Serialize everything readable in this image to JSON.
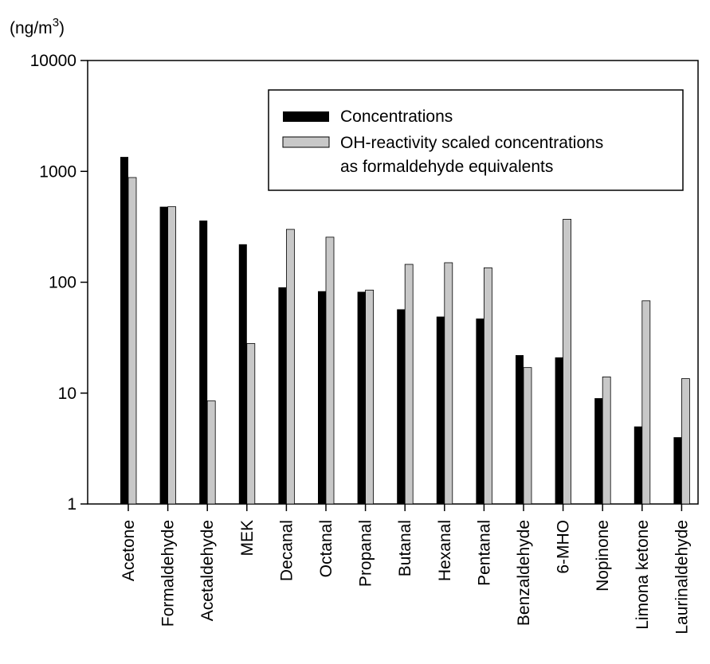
{
  "chart_data": {
    "type": "bar",
    "title": "",
    "xlabel": "",
    "ylabel": "(ng/m3)",
    "ylabel_parts": {
      "base": "(ng/m",
      "sup": "3",
      "close": ")"
    },
    "yscale": "log",
    "ylim": [
      1,
      10000
    ],
    "yticks": [
      "1",
      "10",
      "100",
      "1000",
      "10000"
    ],
    "grid": false,
    "legend_position": "top-right",
    "categories": [
      "Acetone",
      "Formaldehyde",
      "Acetaldehyde",
      "MEK",
      "Decanal",
      "Octanal",
      "Propanal",
      "Butanal",
      "Hexanal",
      "Pentanal",
      "Benzaldehyde",
      "6-MHO",
      "Nopinone",
      "Limona ketone",
      "Laurinaldehyde"
    ],
    "series": [
      {
        "name": "Concentrations",
        "color": "#000000",
        "values": [
          1350,
          480,
          360,
          220,
          90,
          83,
          82,
          57,
          49,
          47,
          22,
          21,
          9,
          5,
          4
        ]
      },
      {
        "name": "OH-reactivity scaled concentrations",
        "name_line2": "as formaldehyde equivalents",
        "color": "#c8c8c8",
        "values": [
          880,
          480,
          8.5,
          28,
          300,
          255,
          85,
          145,
          150,
          135,
          17,
          370,
          14,
          68,
          13.5
        ]
      }
    ]
  }
}
